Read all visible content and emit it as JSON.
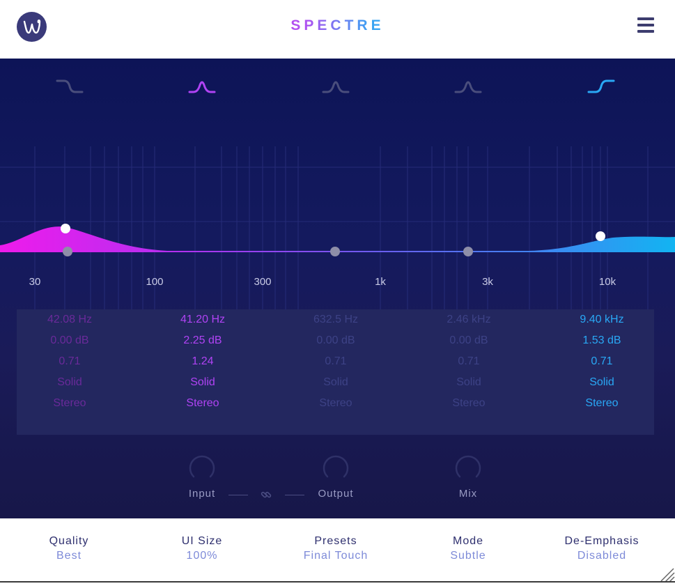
{
  "header": {
    "app_title": "SPECTRE",
    "logo_icon": "w-logo-icon",
    "menu_icon": "hamburger-menu-icon"
  },
  "colors": {
    "band1": "#c13ce2",
    "band2": "#b043f4",
    "band3": "#4a4a9a",
    "band4": "#4a4a9a",
    "band5": "#29a8f5",
    "inactive_icon": "#4a4e7c",
    "accent_gradient_start": "#e81fea",
    "accent_gradient_end": "#16b0f0"
  },
  "band_icons": [
    {
      "name": "low-shelf-icon",
      "active": false
    },
    {
      "name": "bell-filter-icon",
      "active": true
    },
    {
      "name": "bell-filter-icon",
      "active": false
    },
    {
      "name": "bell-filter-icon",
      "active": false
    },
    {
      "name": "high-shelf-icon",
      "active": true
    }
  ],
  "freq_axis": {
    "labels": [
      "30",
      "100",
      "300",
      "1k",
      "3k",
      "10k"
    ]
  },
  "bands": [
    {
      "freq": "42.08 Hz",
      "gain": "0.00 dB",
      "q": "0.71",
      "mode": "Solid",
      "stereo": "Stereo"
    },
    {
      "freq": "41.20 Hz",
      "gain": "2.25 dB",
      "q": "1.24",
      "mode": "Solid",
      "stereo": "Stereo"
    },
    {
      "freq": "632.5 Hz",
      "gain": "0.00 dB",
      "q": "0.71",
      "mode": "Solid",
      "stereo": "Stereo"
    },
    {
      "freq": "2.46 kHz",
      "gain": "0.00 dB",
      "q": "0.71",
      "mode": "Solid",
      "stereo": "Stereo"
    },
    {
      "freq": "9.40 kHz",
      "gain": "1.53 dB",
      "q": "0.71",
      "mode": "Solid",
      "stereo": "Stereo"
    }
  ],
  "controls": {
    "input_label": "Input",
    "output_label": "Output",
    "mix_label": "Mix",
    "link_icon": "link-icon"
  },
  "footer": {
    "quality": {
      "label": "Quality",
      "value": "Best"
    },
    "ui_size": {
      "label": "UI Size",
      "value": "100%"
    },
    "presets": {
      "label": "Presets",
      "value": "Final Touch"
    },
    "mode": {
      "label": "Mode",
      "value": "Subtle"
    },
    "de_emphasis": {
      "label": "De-Emphasis",
      "value": "Disabled"
    }
  }
}
